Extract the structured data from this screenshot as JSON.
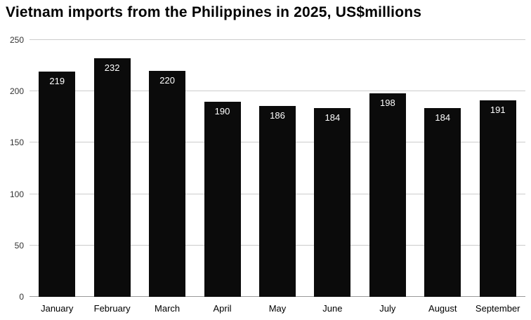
{
  "chart_data": {
    "type": "bar",
    "title": "Vietnam imports from the Philippines in 2025, US$millions",
    "categories": [
      "January",
      "February",
      "March",
      "April",
      "May",
      "June",
      "July",
      "August",
      "September"
    ],
    "values": [
      219,
      232,
      220,
      190,
      186,
      184,
      198,
      184,
      191
    ],
    "xlabel": "",
    "ylabel": "",
    "ylim": [
      0,
      250
    ],
    "yticks": [
      0,
      50,
      100,
      150,
      200,
      250
    ],
    "grid": true,
    "legend": false,
    "bar_color": "#0b0b0b",
    "value_label_color": "#ffffff",
    "gridline_color": "#cccccc",
    "axis_line_color": "#999999",
    "background_color": "#ffffff"
  }
}
